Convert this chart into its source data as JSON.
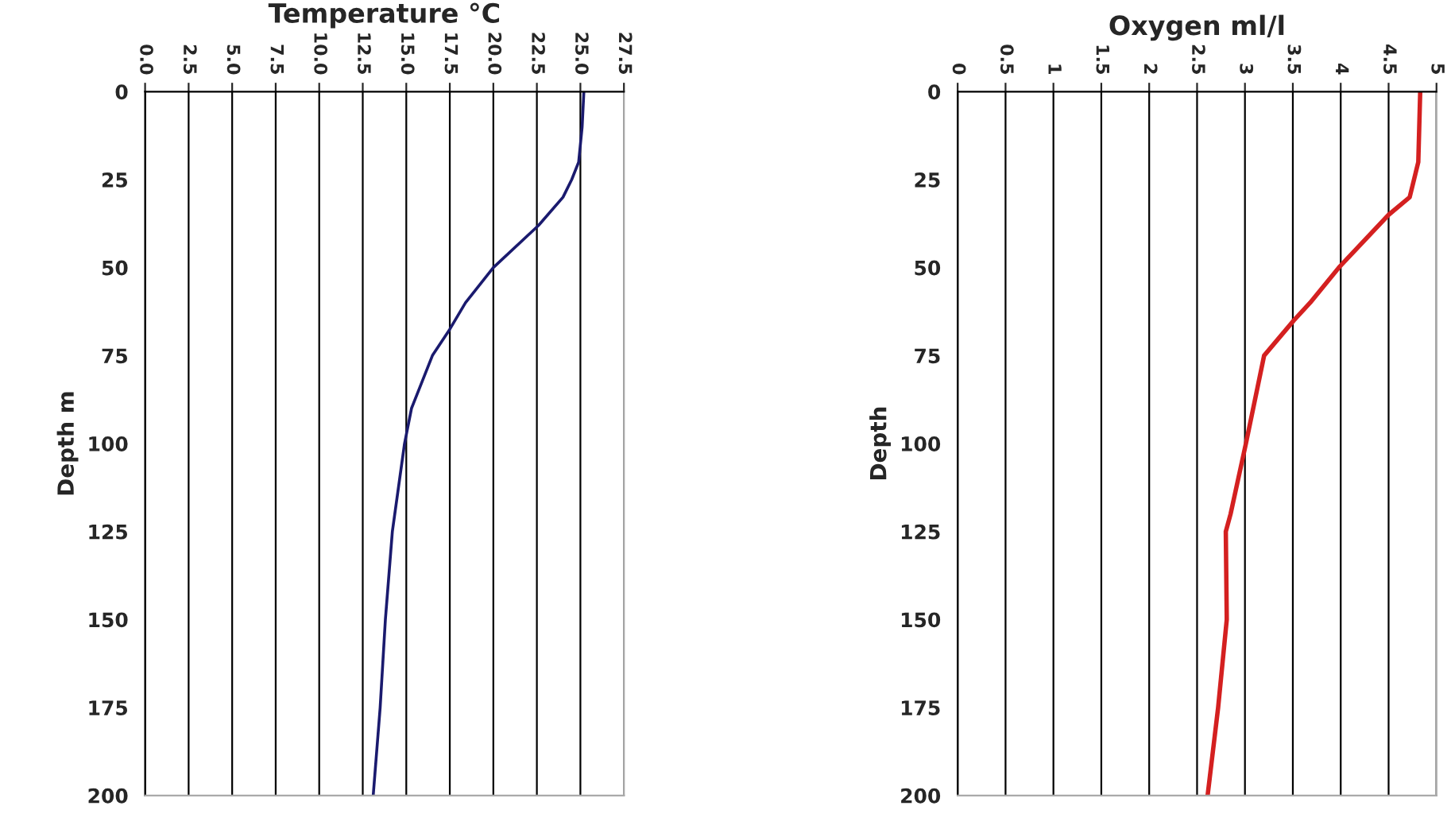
{
  "chart_data": [
    {
      "type": "line",
      "title": "Temperature °C",
      "ylabel": "Depth m",
      "series": [
        {
          "color": "#1a1a6e",
          "x": [
            25.2,
            25.1,
            24.9,
            24.5,
            24.0,
            22.6,
            20.0,
            18.4,
            17.5,
            16.5,
            15.3,
            14.9,
            14.2,
            13.8,
            13.5,
            13.1
          ],
          "values": [
            0,
            10,
            20,
            25,
            30,
            38,
            50,
            60,
            67.5,
            75,
            90,
            100,
            125,
            150,
            175,
            200
          ]
        }
      ],
      "xlim": [
        0,
        27.5
      ],
      "xticks": [
        {
          "value": 0,
          "label": "0.0"
        },
        {
          "value": 2.5,
          "label": "2.5"
        },
        {
          "value": 5,
          "label": "5.0"
        },
        {
          "value": 7.5,
          "label": "7.5"
        },
        {
          "value": 10,
          "label": "10.0"
        },
        {
          "value": 12.5,
          "label": "12.5"
        },
        {
          "value": 15,
          "label": "15.0"
        },
        {
          "value": 17.5,
          "label": "17.5"
        },
        {
          "value": 20,
          "label": "20.0"
        },
        {
          "value": 22.5,
          "label": "22.5"
        },
        {
          "value": 25,
          "label": "25.0"
        },
        {
          "value": 27.5,
          "label": "27.5"
        }
      ],
      "ylim": [
        200,
        0
      ],
      "yticks": [
        0,
        25,
        50,
        75,
        100,
        125,
        150,
        175,
        200
      ],
      "grid": "x",
      "legend": false
    },
    {
      "type": "line",
      "title": "Oxygen ml/l",
      "ylabel": "Depth",
      "series": [
        {
          "color": "#d42020",
          "x": [
            4.83,
            4.81,
            4.72,
            4.5,
            3.98,
            3.68,
            3.51,
            3.2,
            3.01,
            2.85,
            2.8,
            2.81,
            2.72,
            2.61
          ],
          "values": [
            0,
            20,
            30,
            35,
            50,
            60,
            65,
            75,
            100,
            120,
            125,
            150,
            175,
            200
          ]
        }
      ],
      "xlim": [
        0,
        5
      ],
      "xticks": [
        0,
        0.5,
        1,
        1.5,
        2,
        2.5,
        3,
        3.5,
        4,
        4.5,
        5
      ],
      "ylim": [
        200,
        0
      ],
      "yticks": [
        0,
        25,
        50,
        75,
        100,
        125,
        150,
        175,
        200
      ],
      "grid": "x",
      "legend": false
    }
  ]
}
